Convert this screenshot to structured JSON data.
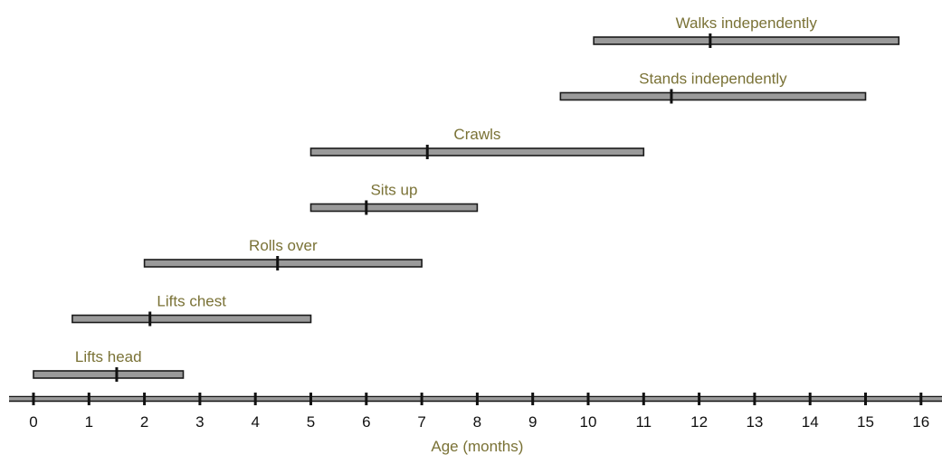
{
  "chart_data": {
    "type": "range",
    "xlabel": "Age (months)",
    "xlim": [
      0,
      16
    ],
    "ticks": [
      0,
      1,
      2,
      3,
      4,
      5,
      6,
      7,
      8,
      9,
      10,
      11,
      12,
      13,
      14,
      15,
      16
    ],
    "grid": false,
    "milestones": [
      {
        "label": "Walks independently",
        "start": 10.1,
        "end": 15.6,
        "median": 12.2
      },
      {
        "label": "Stands independently",
        "start": 9.5,
        "end": 15.0,
        "median": 11.5
      },
      {
        "label": "Crawls",
        "start": 5.0,
        "end": 11.0,
        "median": 7.1
      },
      {
        "label": "Sits up",
        "start": 5.0,
        "end": 8.0,
        "median": 6.0
      },
      {
        "label": "Rolls over",
        "start": 2.0,
        "end": 7.0,
        "median": 4.4
      },
      {
        "label": "Lifts chest",
        "start": 0.7,
        "end": 5.0,
        "median": 2.1
      },
      {
        "label": "Lifts head",
        "start": 0.0,
        "end": 2.7,
        "median": 1.5
      }
    ]
  }
}
